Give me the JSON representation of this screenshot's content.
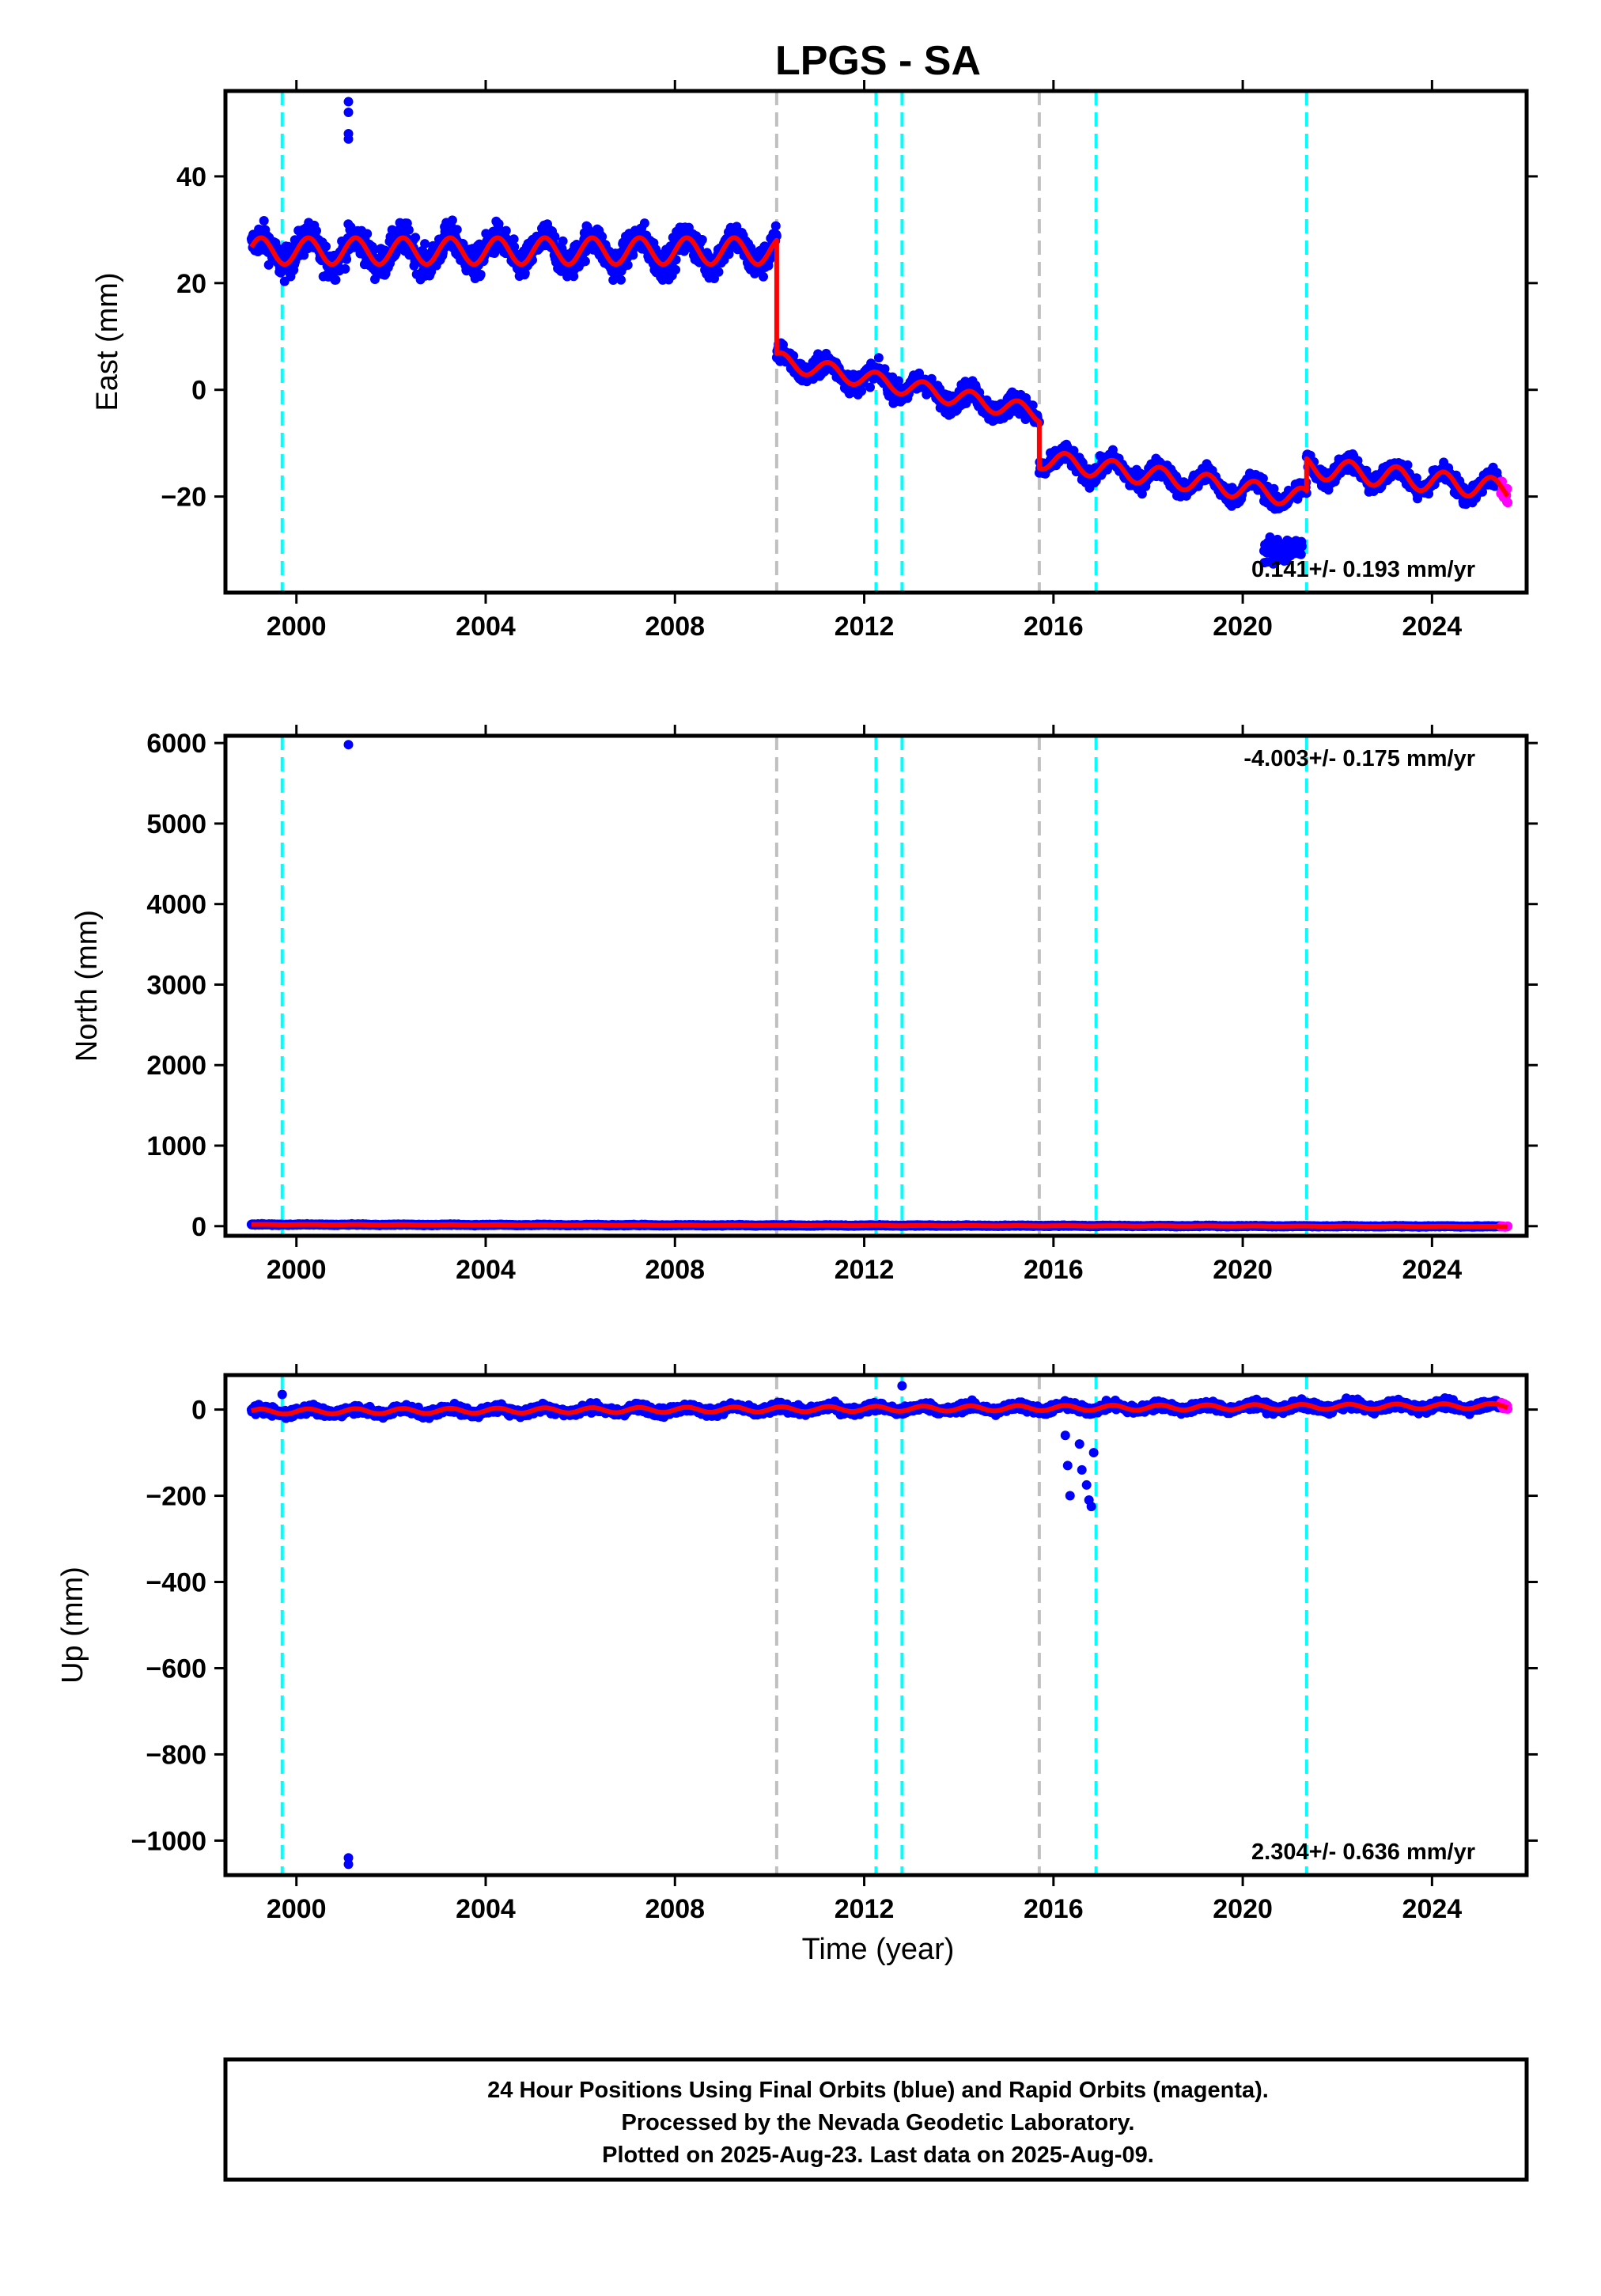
{
  "title": "LPGS - SA",
  "xlabel": "Time (year)",
  "footer": [
    "24 Hour Positions Using Final Orbits (blue) and Rapid Orbits (magenta).",
    "Processed by the Nevada Geodetic Laboratory.",
    "Plotted on 2025-Aug-23. Last data on 2025-Aug-09."
  ],
  "colors": {
    "final_orbits": "#0000ff",
    "rapid_orbits": "#ff00ff",
    "model": "#ff0000",
    "equipment_change": "#00ffff",
    "earthquake": "#c0c0c0"
  },
  "chart_data": [
    {
      "type": "scatter",
      "ylabel": "East (mm)",
      "rate_text": "0.141+/- 0.193 mm/yr",
      "rate_position": "bottom-right",
      "xlim": [
        1998.5,
        2026.0
      ],
      "ylim": [
        -38,
        56
      ],
      "x_ticks": [
        2000,
        2004,
        2008,
        2012,
        2016,
        2020,
        2024
      ],
      "y_ticks": [
        -20,
        0,
        20,
        40
      ],
      "cyan_lines": [
        1999.7,
        2012.25,
        2012.8,
        2016.9,
        2021.35
      ],
      "gray_lines": [
        2010.15,
        2015.7
      ],
      "segments": [
        {
          "x0": 1999.05,
          "x1": 2010.15,
          "offset": 26.0,
          "slope": 0.0,
          "amp": 2.5,
          "spread": 3.0
        },
        {
          "x0": 2010.15,
          "x1": 2015.7,
          "offset": 5.5,
          "slope": -1.8,
          "amp": 1.6,
          "spread": 2.0
        },
        {
          "x0": 2015.7,
          "x1": 2021.35,
          "offset": -13.0,
          "slope": -1.3,
          "amp": 1.8,
          "spread": 1.8
        },
        {
          "x0": 2021.35,
          "x1": 2025.6,
          "offset": -14.5,
          "slope": -1.0,
          "amp": 2.0,
          "spread": 1.8
        }
      ],
      "outliers": [
        {
          "x": 2001.1,
          "y": 54
        },
        {
          "x": 2001.1,
          "y": 52
        },
        {
          "x": 2001.1,
          "y": 48
        },
        {
          "x": 2001.1,
          "y": 47
        }
      ],
      "anomaly": {
        "x0": 2020.45,
        "x1": 2021.25,
        "y": -30,
        "spread": 2.5
      }
    },
    {
      "type": "scatter",
      "ylabel": "North (mm)",
      "rate_text": "-4.003+/- 0.175 mm/yr",
      "rate_position": "top-right",
      "xlim": [
        1998.5,
        2026.0
      ],
      "ylim": [
        -120,
        6090
      ],
      "x_ticks": [
        2000,
        2004,
        2008,
        2012,
        2016,
        2020,
        2024
      ],
      "y_ticks": [
        0,
        1000,
        2000,
        3000,
        4000,
        5000,
        6000
      ],
      "cyan_lines": [
        1999.7,
        2012.25,
        2012.8,
        2016.9,
        2021.35
      ],
      "gray_lines": [
        2010.15,
        2015.7
      ],
      "segments": [
        {
          "x0": 1999.05,
          "x1": 2025.6,
          "offset": 20,
          "slope": -0.9,
          "amp": 2,
          "spread": 6
        }
      ],
      "outliers": [
        {
          "x": 2001.1,
          "y": 5980
        }
      ]
    },
    {
      "type": "scatter",
      "ylabel": "Up (mm)",
      "rate_text": "2.304+/- 0.636 mm/yr",
      "rate_position": "bottom-right",
      "xlim": [
        1998.5,
        2026.0
      ],
      "ylim": [
        -1080,
        80
      ],
      "x_ticks": [
        2000,
        2004,
        2008,
        2012,
        2016,
        2020,
        2024
      ],
      "y_ticks": [
        -1000,
        -800,
        -600,
        -400,
        -200,
        0
      ],
      "cyan_lines": [
        1999.7,
        2012.25,
        2012.8,
        2016.9,
        2021.35
      ],
      "gray_lines": [
        2010.15,
        2015.7
      ],
      "segments": [
        {
          "x0": 1999.05,
          "x1": 2025.6,
          "offset": -5,
          "slope": 0.5,
          "amp": 6,
          "spread": 10
        }
      ],
      "outliers": [
        {
          "x": 2001.1,
          "y": -1040
        },
        {
          "x": 2001.1,
          "y": -1055
        },
        {
          "x": 1999.7,
          "y": 35
        },
        {
          "x": 2012.8,
          "y": 55
        },
        {
          "x": 2016.25,
          "y": -60
        },
        {
          "x": 2016.3,
          "y": -130
        },
        {
          "x": 2016.35,
          "y": -200
        },
        {
          "x": 2016.55,
          "y": -80
        },
        {
          "x": 2016.6,
          "y": -140
        },
        {
          "x": 2016.7,
          "y": -175
        },
        {
          "x": 2016.75,
          "y": -210
        },
        {
          "x": 2016.8,
          "y": -225
        },
        {
          "x": 2016.85,
          "y": -100
        }
      ]
    }
  ]
}
